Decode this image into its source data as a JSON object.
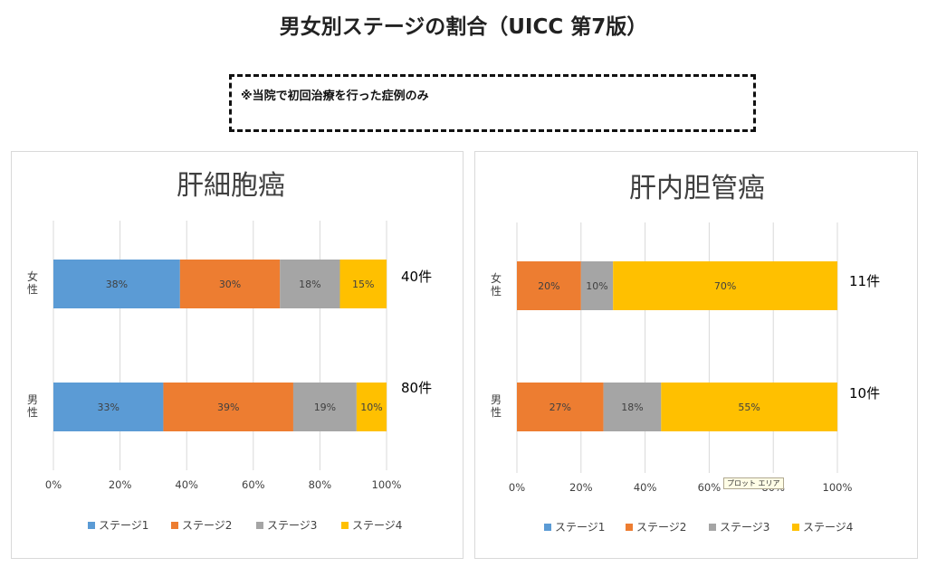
{
  "page": {
    "title": "男女別ステージの割合（UICC 第7版）",
    "note": "※当院で初回治療を行った症例のみ"
  },
  "colors": {
    "stage1": "#5B9BD5",
    "stage2": "#ED7D31",
    "stage3": "#A5A5A5",
    "stage4": "#FFC000",
    "grid": "#d9d9d9",
    "text": "#404040"
  },
  "tooltip": "プロット エリア",
  "chart_data": [
    {
      "type": "bar",
      "orientation": "horizontal",
      "stacked": "percent",
      "title": "肝細胞癌",
      "categories": [
        "女性",
        "男性"
      ],
      "category_label_lines": [
        [
          "女",
          "性"
        ],
        [
          "男",
          "性"
        ]
      ],
      "counts": [
        "40件",
        "80件"
      ],
      "series": [
        {
          "name": "ステージ1",
          "color": "#5B9BD5",
          "values": [
            38,
            33
          ],
          "labels": [
            "38%",
            "33%"
          ]
        },
        {
          "name": "ステージ2",
          "color": "#ED7D31",
          "values": [
            30,
            39
          ],
          "labels": [
            "30%",
            "39%"
          ]
        },
        {
          "name": "ステージ3",
          "color": "#A5A5A5",
          "values": [
            18,
            19
          ],
          "labels": [
            "18%",
            "19%"
          ]
        },
        {
          "name": "ステージ4",
          "color": "#FFC000",
          "values": [
            15,
            10
          ],
          "labels": [
            "15%",
            "10%"
          ]
        }
      ],
      "xticks": [
        "0%",
        "20%",
        "40%",
        "60%",
        "80%",
        "100%"
      ],
      "xlim": [
        0,
        100
      ],
      "grid": true,
      "legend": "bottom"
    },
    {
      "type": "bar",
      "orientation": "horizontal",
      "stacked": "percent",
      "title": "肝内胆管癌",
      "categories": [
        "女性",
        "男性"
      ],
      "category_label_lines": [
        [
          "女",
          "性"
        ],
        [
          "男",
          "性"
        ]
      ],
      "counts": [
        "11件",
        "10件"
      ],
      "series": [
        {
          "name": "ステージ1",
          "color": "#5B9BD5",
          "values": [
            0,
            0
          ],
          "labels": [
            "",
            ""
          ]
        },
        {
          "name": "ステージ2",
          "color": "#ED7D31",
          "values": [
            20,
            27
          ],
          "labels": [
            "20%",
            "27%"
          ]
        },
        {
          "name": "ステージ3",
          "color": "#A5A5A5",
          "values": [
            10,
            18
          ],
          "labels": [
            "10%",
            "18%"
          ]
        },
        {
          "name": "ステージ4",
          "color": "#FFC000",
          "values": [
            70,
            55
          ],
          "labels": [
            "70%",
            "55%"
          ]
        }
      ],
      "xticks": [
        "0%",
        "20%",
        "40%",
        "60%",
        "80%",
        "100%"
      ],
      "xlim": [
        0,
        100
      ],
      "grid": true,
      "legend": "bottom"
    }
  ]
}
